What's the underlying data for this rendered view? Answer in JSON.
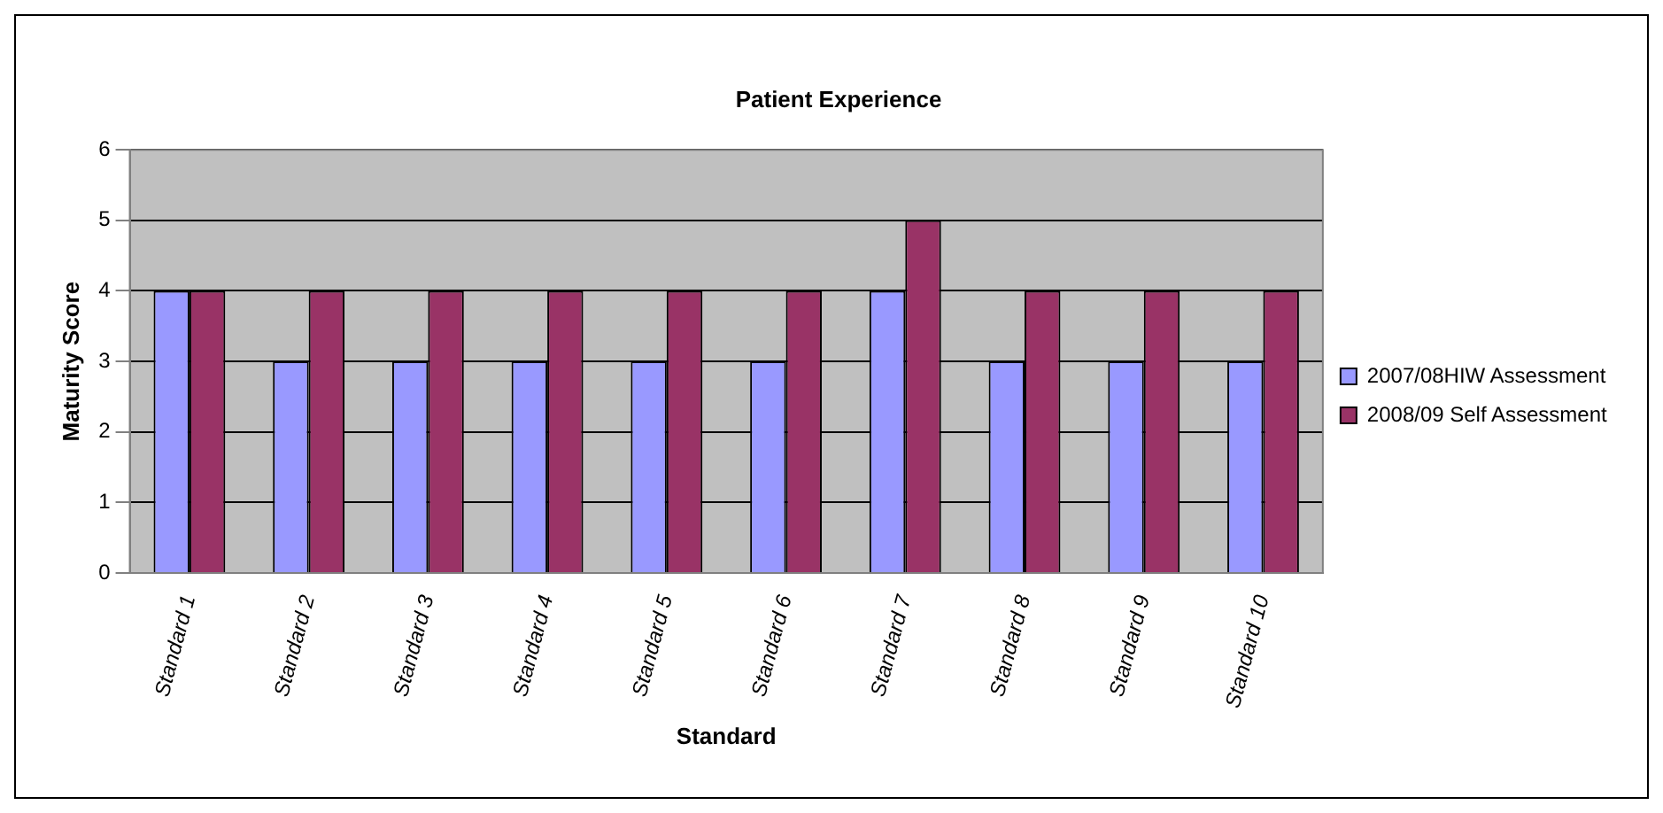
{
  "chart_data": {
    "type": "bar",
    "title": "Patient Experience",
    "xlabel": "Standard",
    "ylabel": "Maturity Score",
    "categories": [
      "Standard 1",
      "Standard 2",
      "Standard 3",
      "Standard 4",
      "Standard 5",
      "Standard 6",
      "Standard 7",
      "Standard 8",
      "Standard 9",
      "Standard 10"
    ],
    "series": [
      {
        "name": "2007/08HIW Assessment",
        "color": "#9999ff",
        "values": [
          4,
          3,
          3,
          3,
          3,
          3,
          4,
          3,
          3,
          3
        ]
      },
      {
        "name": "2008/09 Self Assessment",
        "color": "#993366",
        "values": [
          4,
          4,
          4,
          4,
          4,
          4,
          5,
          4,
          4,
          4
        ]
      }
    ],
    "ylim": [
      0,
      6
    ],
    "yticks": [
      0,
      1,
      2,
      3,
      4,
      5,
      6
    ],
    "grid": "y",
    "legend": "right"
  }
}
